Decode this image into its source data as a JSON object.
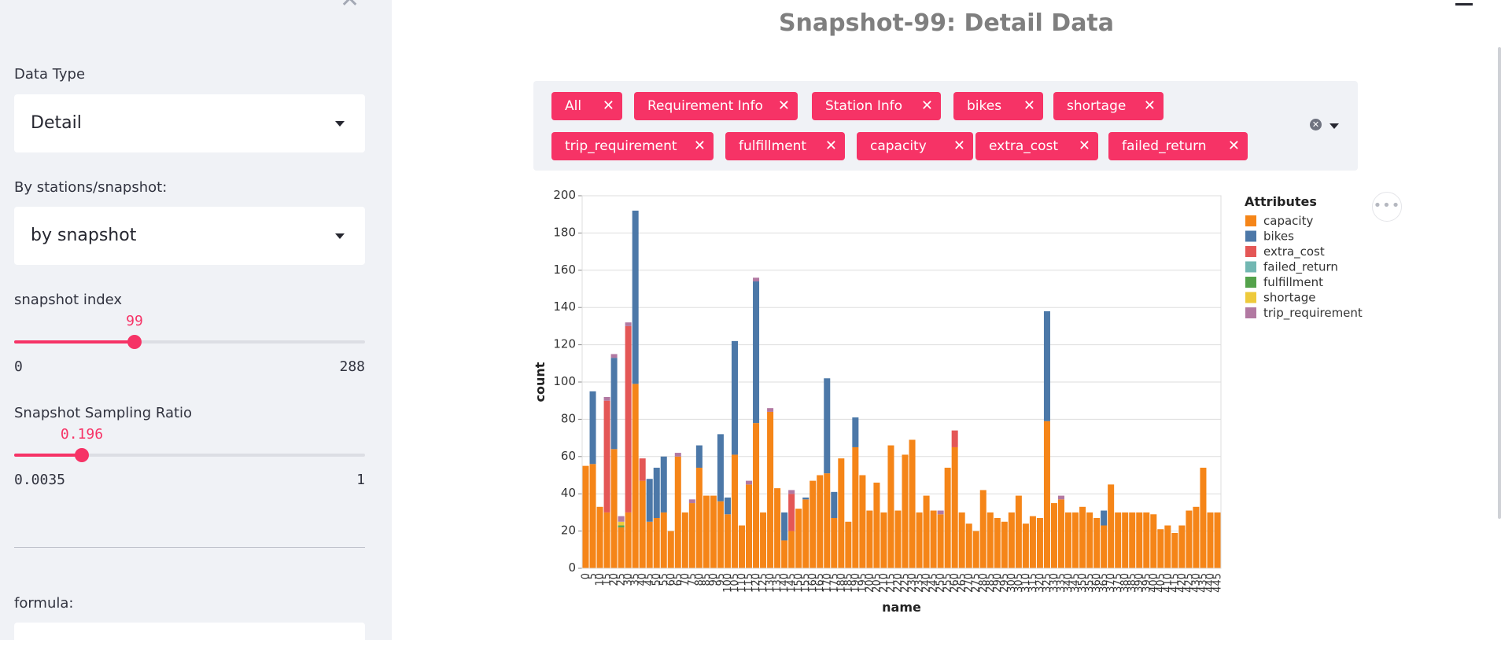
{
  "sidebar": {
    "data_type": {
      "label": "Data Type",
      "value": "Detail"
    },
    "by_station": {
      "label": "By stations/snapshot:",
      "value": "by snapshot"
    },
    "snapshot_index": {
      "label": "snapshot index",
      "value": "99",
      "min": "0",
      "max": "288",
      "fraction": 0.344
    },
    "sampling_ratio": {
      "label": "Snapshot Sampling Ratio",
      "value": "0.196",
      "min": "0.0035",
      "max": "1",
      "fraction": 0.193
    },
    "formula": {
      "label": "formula:"
    },
    "close_icon": "close-icon"
  },
  "main": {
    "title": "Snapshot-99: Detail Data",
    "tags": [
      "All",
      "Requirement Info",
      "Station Info",
      "bikes",
      "shortage",
      "trip_requirement",
      "fulfillment",
      "capacity",
      "extra_cost",
      "failed_return"
    ],
    "accent": "#f63366"
  },
  "chart_data": {
    "type": "bar",
    "stacked": true,
    "xlabel": "name",
    "ylabel": "count",
    "ylim": [
      0,
      200
    ],
    "yticks": [
      0,
      20,
      40,
      60,
      80,
      100,
      120,
      140,
      160,
      180,
      200
    ],
    "categories": [
      0,
      5,
      10,
      15,
      20,
      25,
      30,
      35,
      40,
      45,
      50,
      55,
      60,
      65,
      70,
      75,
      80,
      85,
      90,
      95,
      100,
      105,
      110,
      115,
      120,
      125,
      130,
      135,
      140,
      145,
      150,
      155,
      160,
      165,
      170,
      175,
      180,
      185,
      190,
      195,
      200,
      205,
      210,
      215,
      220,
      225,
      230,
      235,
      240,
      245,
      250,
      255,
      260,
      265,
      270,
      275,
      280,
      285,
      290,
      295,
      300,
      305,
      310,
      315,
      320,
      325,
      330,
      335,
      340,
      345,
      350,
      355,
      360,
      365,
      370,
      375,
      380,
      385,
      390,
      395,
      400,
      405,
      410,
      415,
      420,
      425,
      430,
      435,
      440,
      445
    ],
    "legend_title": "Attributes",
    "legend_position": "right",
    "series": [
      {
        "name": "capacity",
        "color": "#f58518",
        "values": [
          55,
          56,
          33,
          30,
          64,
          22,
          30,
          99,
          47,
          25,
          27,
          30,
          20,
          60,
          30,
          35,
          54,
          39,
          39,
          36,
          29,
          61,
          23,
          45,
          78,
          30,
          84,
          43,
          15,
          20,
          32,
          37,
          47,
          50,
          51,
          27,
          59,
          25,
          65,
          50,
          31,
          46,
          30,
          66,
          31,
          61,
          69,
          30,
          39,
          31,
          29,
          54,
          65,
          30,
          24,
          20,
          42,
          30,
          27,
          25,
          30,
          39,
          24,
          28,
          27,
          79,
          35,
          37,
          30,
          30,
          33,
          30,
          27,
          23,
          45,
          30,
          30,
          30,
          30,
          30,
          29,
          21,
          23,
          19,
          23,
          31,
          33,
          54,
          30,
          30
        ]
      },
      {
        "name": "bikes",
        "color": "#4c78a8",
        "values": [
          0,
          39,
          0,
          0,
          49,
          0,
          0,
          93,
          0,
          23,
          27,
          30,
          0,
          0,
          0,
          0,
          12,
          0,
          0,
          36,
          9,
          61,
          0,
          0,
          76,
          0,
          0,
          0,
          15,
          0,
          0,
          1,
          0,
          0,
          51,
          14,
          0,
          0,
          16,
          0,
          0,
          0,
          0,
          0,
          0,
          0,
          0,
          0,
          0,
          0,
          0,
          0,
          0,
          0,
          0,
          0,
          0,
          0,
          0,
          0,
          0,
          0,
          0,
          0,
          0,
          59,
          0,
          0,
          0,
          0,
          0,
          0,
          0,
          8,
          0,
          0,
          0,
          0,
          0,
          0,
          0,
          0,
          0,
          0,
          0,
          0,
          0,
          0,
          0,
          0
        ]
      },
      {
        "name": "extra_cost",
        "color": "#e45756",
        "values": [
          0,
          0,
          0,
          60,
          0,
          0,
          100,
          0,
          12,
          0,
          0,
          0,
          0,
          0,
          0,
          0,
          0,
          0,
          0,
          0,
          0,
          0,
          0,
          0,
          0,
          0,
          0,
          0,
          0,
          20,
          0,
          0,
          0,
          0,
          0,
          0,
          0,
          0,
          0,
          0,
          0,
          0,
          0,
          0,
          0,
          0,
          0,
          0,
          0,
          0,
          0,
          0,
          9,
          0,
          0,
          0,
          0,
          0,
          0,
          0,
          0,
          0,
          0,
          0,
          0,
          0,
          0,
          0,
          0,
          0,
          0,
          0,
          0,
          0,
          0,
          0,
          0,
          0,
          0,
          0,
          0,
          0,
          0,
          0,
          0,
          0,
          0,
          0,
          0,
          0
        ]
      },
      {
        "name": "failed_return",
        "color": "#72b7b2",
        "values": [
          0,
          0,
          0,
          0,
          0,
          0,
          0,
          0,
          0,
          0,
          0,
          0,
          0,
          0,
          0,
          0,
          0,
          0,
          0,
          0,
          0,
          0,
          0,
          0,
          0,
          0,
          0,
          0,
          0,
          0,
          0,
          0,
          0,
          0,
          0,
          0,
          0,
          0,
          0,
          0,
          0,
          0,
          0,
          0,
          0,
          0,
          0,
          0,
          0,
          0,
          0,
          0,
          0,
          0,
          0,
          0,
          0,
          0,
          0,
          0,
          0,
          0,
          0,
          0,
          0,
          0,
          0,
          0,
          0,
          0,
          0,
          0,
          0,
          0,
          0,
          0,
          0,
          0,
          0,
          0,
          0,
          0,
          0,
          0,
          0,
          0,
          0,
          0,
          0,
          0
        ]
      },
      {
        "name": "fulfillment",
        "color": "#54a24b",
        "values": [
          0,
          0,
          0,
          0,
          0,
          1,
          0,
          0,
          0,
          0,
          0,
          0,
          0,
          0,
          0,
          0,
          0,
          0,
          0,
          0,
          0,
          0,
          0,
          0,
          0,
          0,
          0,
          0,
          0,
          0,
          0,
          0,
          0,
          0,
          0,
          0,
          0,
          0,
          0,
          0,
          0,
          0,
          0,
          0,
          0,
          0,
          0,
          0,
          0,
          0,
          0,
          0,
          0,
          0,
          0,
          0,
          0,
          0,
          0,
          0,
          0,
          0,
          0,
          0,
          0,
          0,
          0,
          0,
          0,
          0,
          0,
          0,
          0,
          0,
          0,
          0,
          0,
          0,
          0,
          0,
          0,
          0,
          0,
          0,
          0,
          0,
          0,
          0,
          0,
          0
        ]
      },
      {
        "name": "shortage",
        "color": "#eeca3b",
        "values": [
          0,
          0,
          0,
          0,
          0,
          2,
          0,
          0,
          0,
          0,
          0,
          0,
          0,
          0,
          0,
          0,
          0,
          0,
          0,
          0,
          0,
          0,
          0,
          0,
          0,
          0,
          0,
          0,
          0,
          0,
          0,
          0,
          0,
          0,
          0,
          0,
          0,
          0,
          0,
          0,
          0,
          0,
          0,
          0,
          0,
          0,
          0,
          0,
          0,
          0,
          0,
          0,
          0,
          0,
          0,
          0,
          0,
          0,
          0,
          0,
          0,
          0,
          0,
          0,
          0,
          0,
          0,
          0,
          0,
          0,
          0,
          0,
          0,
          0,
          0,
          0,
          0,
          0,
          0,
          0,
          0,
          0,
          0,
          0,
          0,
          0,
          0,
          0,
          0,
          0
        ]
      },
      {
        "name": "trip_requirement",
        "color": "#b279a2",
        "values": [
          0,
          0,
          0,
          2,
          2,
          3,
          2,
          0,
          0,
          0,
          0,
          0,
          0,
          2,
          0,
          2,
          0,
          0,
          0,
          0,
          0,
          0,
          0,
          2,
          2,
          0,
          2,
          0,
          0,
          2,
          0,
          0,
          0,
          0,
          0,
          0,
          0,
          0,
          0,
          0,
          0,
          0,
          0,
          0,
          0,
          0,
          0,
          0,
          0,
          0,
          2,
          0,
          0,
          0,
          0,
          0,
          0,
          0,
          0,
          0,
          0,
          0,
          0,
          0,
          0,
          0,
          0,
          2,
          0,
          0,
          0,
          0,
          0,
          0,
          0,
          0,
          0,
          0,
          0,
          0,
          0,
          0,
          0,
          0,
          0,
          0,
          0,
          0,
          0,
          0
        ]
      }
    ]
  }
}
